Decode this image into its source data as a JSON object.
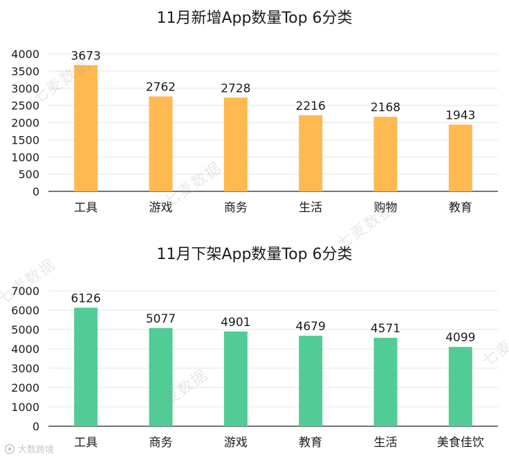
{
  "watermark": "七麦数据",
  "footer_logo_text": "大数跨境",
  "chart_data": [
    {
      "type": "bar",
      "title": "11月新增App数量Top 6分类",
      "categories": [
        "工具",
        "游戏",
        "商务",
        "生活",
        "购物",
        "教育"
      ],
      "values": [
        3673,
        2762,
        2728,
        2216,
        2168,
        1943
      ],
      "ylim": [
        0,
        4000
      ],
      "yticks": [
        0,
        500,
        1000,
        1500,
        2000,
        2500,
        3000,
        3500,
        4000
      ],
      "color": "#ffb951",
      "grid": true,
      "legend": "none"
    },
    {
      "type": "bar",
      "title": "11月下架App数量Top 6分类",
      "categories": [
        "工具",
        "商务",
        "游戏",
        "教育",
        "生活",
        "美食佳饮"
      ],
      "values": [
        6126,
        5077,
        4901,
        4679,
        4571,
        4099
      ],
      "ylim": [
        0,
        7000
      ],
      "yticks": [
        0,
        1000,
        2000,
        3000,
        4000,
        5000,
        6000,
        7000
      ],
      "color": "#52cc96",
      "grid": true,
      "legend": "none"
    }
  ]
}
